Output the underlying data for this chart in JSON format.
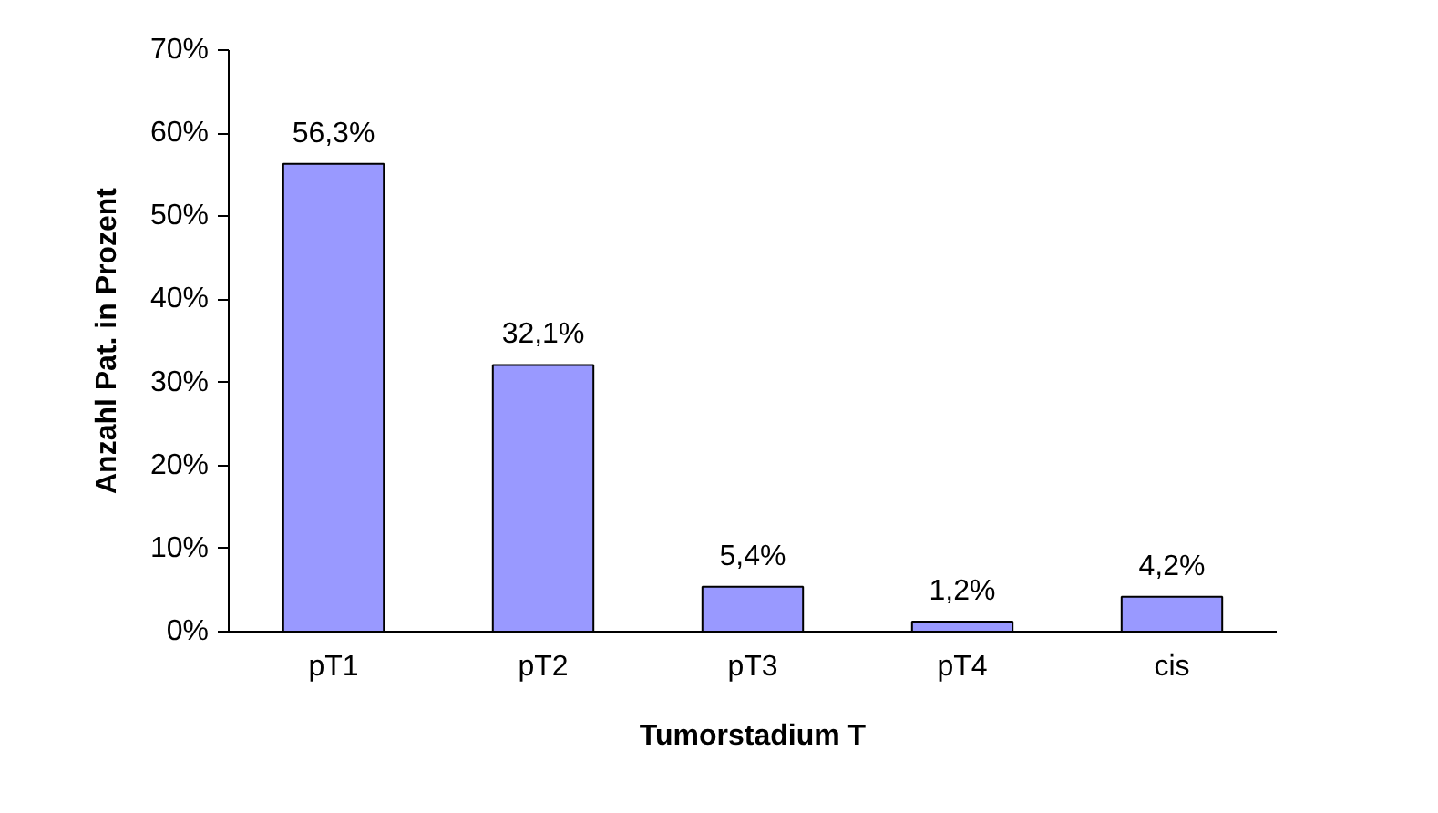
{
  "chart_data": {
    "type": "bar",
    "xlabel": "Tumorstadium T",
    "ylabel": "Anzahl Pat. in Prozent",
    "categories": [
      "pT1",
      "pT2",
      "pT3",
      "pT4",
      "cis"
    ],
    "values": [
      56.3,
      32.1,
      5.4,
      1.2,
      4.2
    ],
    "value_labels": [
      "56,3%",
      "32,1%",
      "5,4%",
      "1,2%",
      "4,2%"
    ],
    "color": "#9999ff",
    "ylim": [
      0,
      70
    ],
    "yticks": [
      {
        "value": 0,
        "label": "0%"
      },
      {
        "value": 10,
        "label": "10%"
      },
      {
        "value": 20,
        "label": "20%"
      },
      {
        "value": 30,
        "label": "30%"
      },
      {
        "value": 40,
        "label": "40%"
      },
      {
        "value": 50,
        "label": "50%"
      },
      {
        "value": 60,
        "label": "60%"
      },
      {
        "value": 70,
        "label": "70%"
      }
    ],
    "grid": false
  }
}
